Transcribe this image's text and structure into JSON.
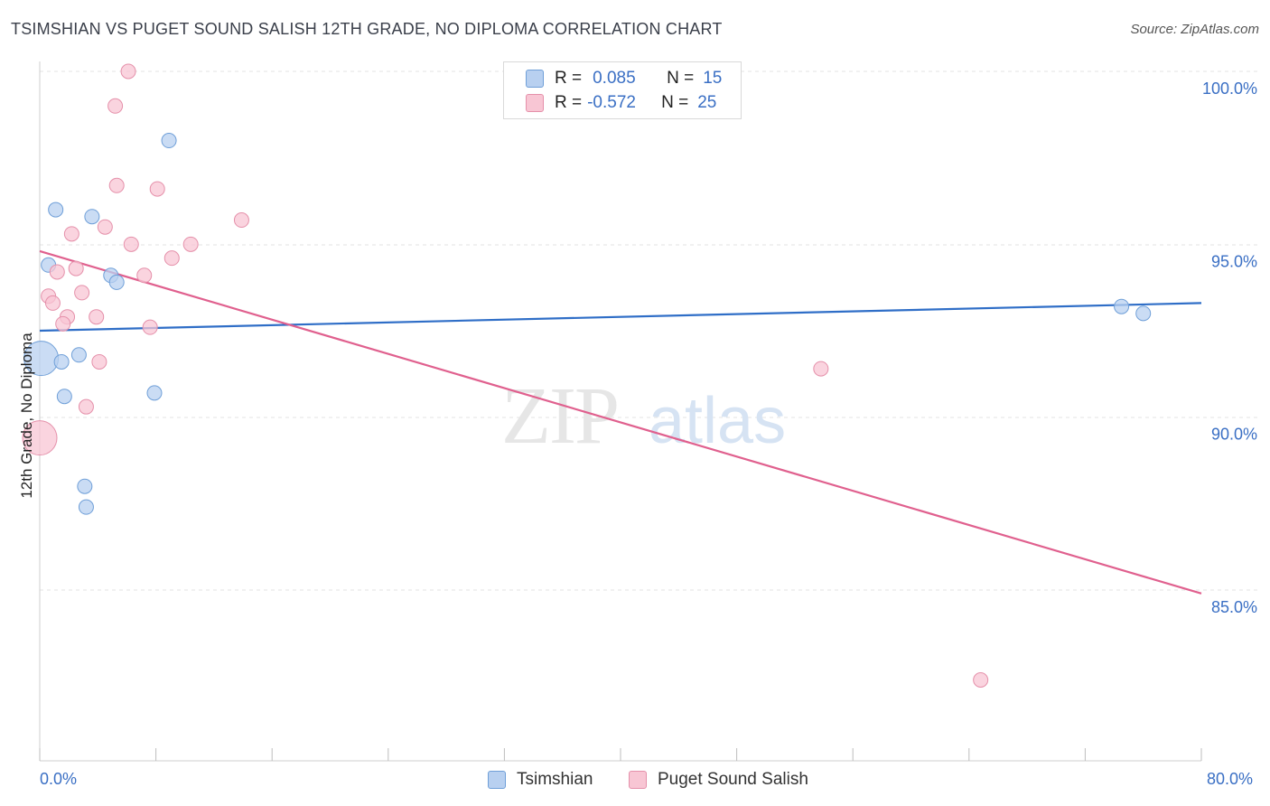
{
  "title": "TSIMSHIAN VS PUGET SOUND SALISH 12TH GRADE, NO DIPLOMA CORRELATION CHART",
  "source": "Source: ZipAtlas.com",
  "watermark": {
    "zip": "ZIP",
    "atlas": "atlas"
  },
  "legend": {
    "r_label": "R =",
    "n_label": "N =",
    "series1": {
      "r": "0.085",
      "n": "15"
    },
    "series2": {
      "r": "-0.572",
      "n": "25"
    }
  },
  "colors": {
    "series1_fill": "#b8d0f0",
    "series1_stroke": "#6f9fd8",
    "series1_line": "#2f6ec7",
    "series2_fill": "#f8c6d4",
    "series2_stroke": "#e590aa",
    "series2_line": "#e0608e",
    "tick_label": "#3a6fc4",
    "grid": "#e3e3e3"
  },
  "chart_data": {
    "type": "scatter",
    "title": "TSIMSHIAN VS PUGET SOUND SALISH 12TH GRADE, NO DIPLOMA CORRELATION CHART",
    "xlabel": "",
    "ylabel": "12th Grade, No Diploma",
    "xlim": [
      0,
      80
    ],
    "ylim": [
      80.5,
      100.8
    ],
    "x_tick_labels": [
      "0.0%",
      "80.0%"
    ],
    "y_ticks": [
      85,
      90,
      95,
      100
    ],
    "y_tick_labels": [
      "85.0%",
      "90.0%",
      "95.0%",
      "100.0%"
    ],
    "grid": true,
    "legend_position": "top-center",
    "series": [
      {
        "name": "Tsimshian",
        "r": 0.085,
        "n": 15,
        "points": [
          {
            "x": 0.1,
            "y": 91.7,
            "big": true
          },
          {
            "x": 1.1,
            "y": 96.0
          },
          {
            "x": 0.6,
            "y": 94.4
          },
          {
            "x": 1.5,
            "y": 91.6
          },
          {
            "x": 1.7,
            "y": 90.6
          },
          {
            "x": 2.7,
            "y": 91.8
          },
          {
            "x": 3.6,
            "y": 95.8
          },
          {
            "x": 4.9,
            "y": 94.1
          },
          {
            "x": 5.3,
            "y": 93.9
          },
          {
            "x": 8.9,
            "y": 98.0
          },
          {
            "x": 7.9,
            "y": 90.7
          },
          {
            "x": 3.1,
            "y": 88.0
          },
          {
            "x": 3.2,
            "y": 87.4
          },
          {
            "x": 74.5,
            "y": 93.2
          },
          {
            "x": 76.0,
            "y": 93.0
          }
        ],
        "trend": {
          "x": [
            0,
            80
          ],
          "y": [
            92.5,
            93.3
          ]
        }
      },
      {
        "name": "Puget Sound Salish",
        "r": -0.572,
        "n": 25,
        "points": [
          {
            "x": 0.0,
            "y": 89.4,
            "big": true
          },
          {
            "x": 6.1,
            "y": 100.0
          },
          {
            "x": 5.2,
            "y": 99.0
          },
          {
            "x": 5.3,
            "y": 96.7
          },
          {
            "x": 8.1,
            "y": 96.6
          },
          {
            "x": 13.9,
            "y": 95.7
          },
          {
            "x": 4.5,
            "y": 95.5
          },
          {
            "x": 2.2,
            "y": 95.3
          },
          {
            "x": 6.3,
            "y": 95.0
          },
          {
            "x": 10.4,
            "y": 95.0
          },
          {
            "x": 9.1,
            "y": 94.6
          },
          {
            "x": 2.5,
            "y": 94.3
          },
          {
            "x": 1.2,
            "y": 94.2
          },
          {
            "x": 7.2,
            "y": 94.1
          },
          {
            "x": 0.6,
            "y": 93.5
          },
          {
            "x": 2.9,
            "y": 93.6
          },
          {
            "x": 0.9,
            "y": 93.3
          },
          {
            "x": 1.9,
            "y": 92.9
          },
          {
            "x": 3.9,
            "y": 92.9
          },
          {
            "x": 1.6,
            "y": 92.7
          },
          {
            "x": 7.6,
            "y": 92.6
          },
          {
            "x": 4.1,
            "y": 91.6
          },
          {
            "x": 3.2,
            "y": 90.3
          },
          {
            "x": 53.8,
            "y": 91.4
          },
          {
            "x": 64.8,
            "y": 82.4
          }
        ],
        "trend": {
          "x": [
            0,
            80
          ],
          "y": [
            94.8,
            84.9
          ]
        }
      }
    ]
  }
}
